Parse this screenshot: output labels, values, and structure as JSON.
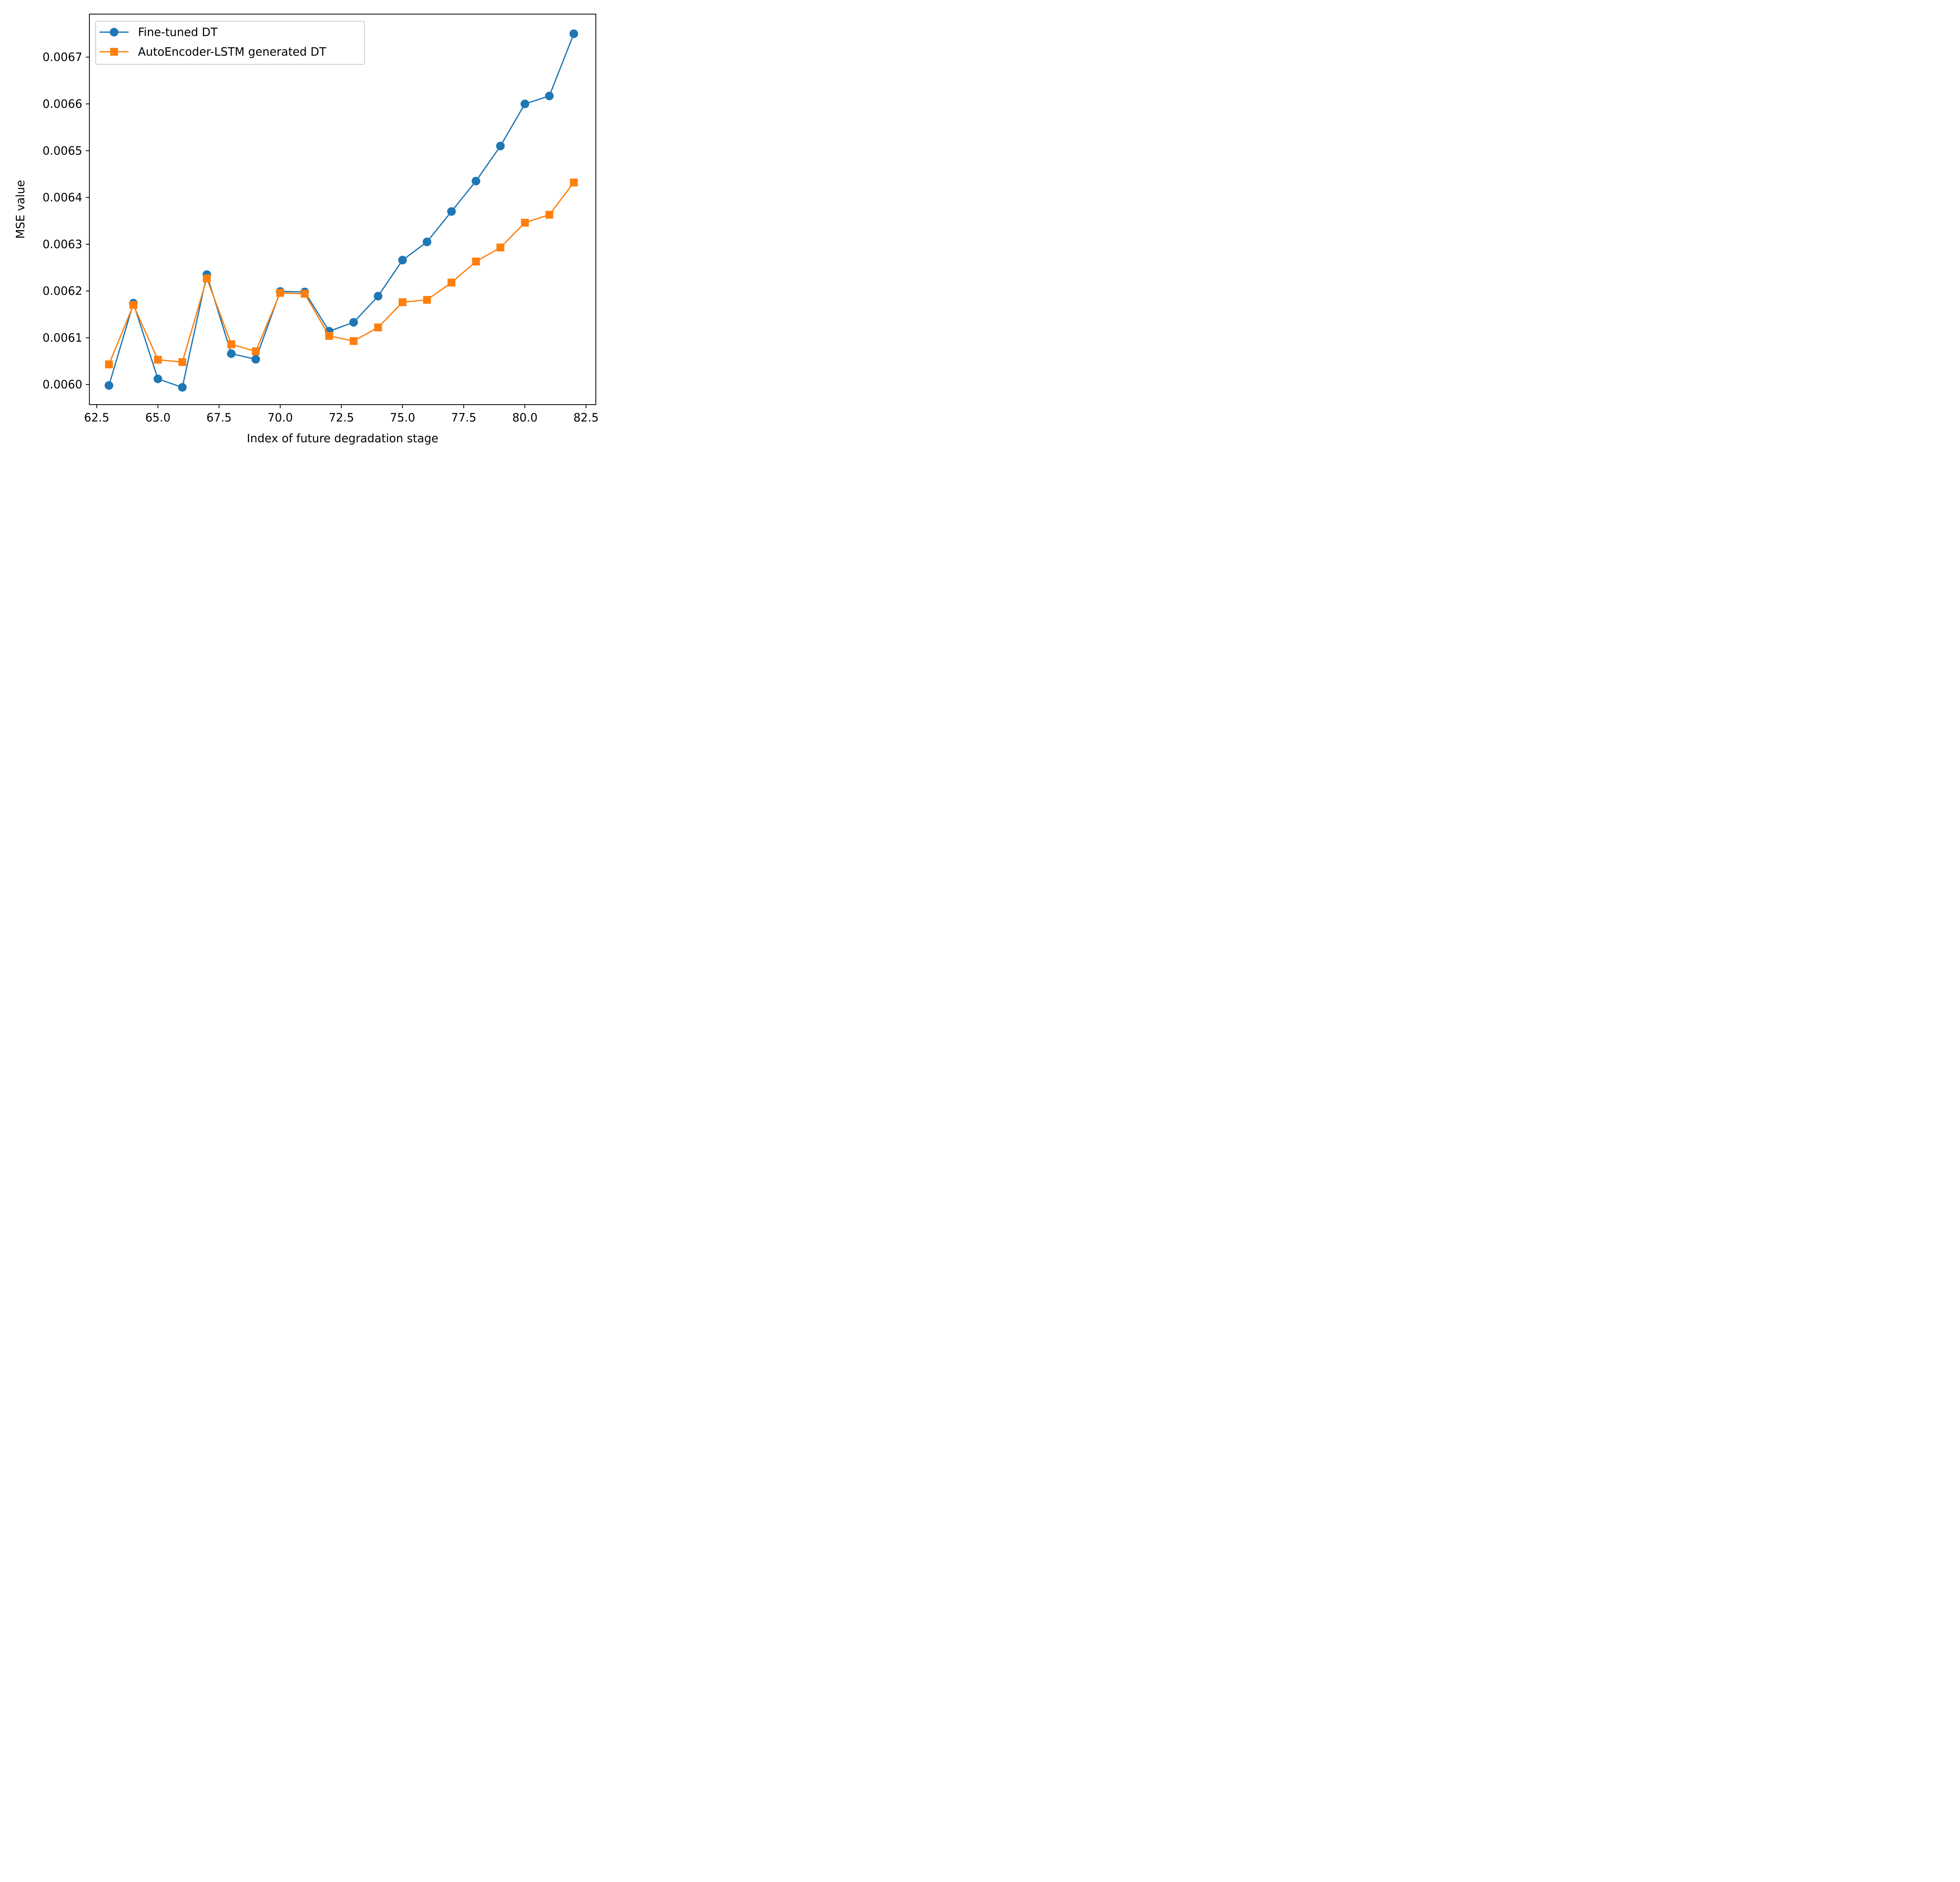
{
  "chart_data": {
    "type": "line",
    "xlabel": "Index of future degradation stage",
    "ylabel": "MSE value",
    "xlim": [
      62.2,
      82.9
    ],
    "ylim": [
      0.005957,
      0.006792
    ],
    "x_ticks": [
      "62.5",
      "65.0",
      "67.5",
      "70.0",
      "72.5",
      "75.0",
      "77.5",
      "80.0",
      "82.5"
    ],
    "y_ticks": [
      "0.0060",
      "0.0061",
      "0.0062",
      "0.0063",
      "0.0064",
      "0.0065",
      "0.0066",
      "0.0067"
    ],
    "grid": false,
    "legend_position": "top-left",
    "x": [
      63,
      64,
      65,
      66,
      67,
      68,
      69,
      70,
      71,
      72,
      73,
      74,
      75,
      76,
      77,
      78,
      79,
      80,
      81,
      82
    ],
    "series": [
      {
        "name": "Fine-tuned DT",
        "color": "#1f77b4",
        "marker": "circle",
        "values": [
          0.005998,
          0.006174,
          0.006012,
          0.005994,
          0.006235,
          0.006066,
          0.006054,
          0.006199,
          0.006198,
          0.006114,
          0.006133,
          0.006189,
          0.006266,
          0.006305,
          0.00637,
          0.006435,
          0.00651,
          0.0066,
          0.006617,
          0.00675
        ]
      },
      {
        "name": "AutoEncoder-LSTM generated DT",
        "color": "#ff7f0e",
        "marker": "square",
        "values": [
          0.006043,
          0.00617,
          0.006053,
          0.006048,
          0.006227,
          0.006086,
          0.006071,
          0.006196,
          0.006194,
          0.006104,
          0.006093,
          0.006122,
          0.006176,
          0.006181,
          0.006218,
          0.006263,
          0.006293,
          0.006346,
          0.006363,
          0.006432
        ]
      }
    ]
  }
}
